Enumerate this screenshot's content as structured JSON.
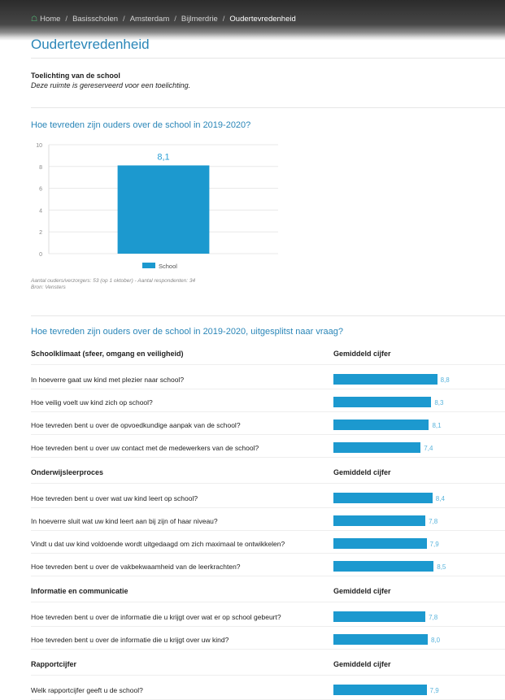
{
  "breadcrumb": {
    "home": "Home",
    "items": [
      "Basisscholen",
      "Amsterdam",
      "Bijlmerdrie"
    ],
    "current": "Oudertevredenheid"
  },
  "page_title": "Oudertevredenheid",
  "intro": {
    "title": "Toelichting van de school",
    "text": "Deze ruimte is gereserveerd voor een toelichting."
  },
  "chart_section": {
    "title": "Hoe tevreden zijn ouders over de school in 2019-2020?",
    "note_line1": "Aantal ouders/verzorgers: 53 (op 1 oktober) - Aantal respondenten: 34",
    "note_line2": "Bron: Vensters"
  },
  "chart_data": {
    "type": "bar",
    "categories": [
      ""
    ],
    "series": [
      {
        "name": "School",
        "values": [
          8.1
        ]
      }
    ],
    "data_labels": [
      "8,1"
    ],
    "yticks": [
      "0",
      "2",
      "4",
      "6",
      "8",
      "10"
    ],
    "ylim": [
      0,
      10
    ],
    "grid": true,
    "legend": "bottom-center",
    "color": "#1c99cf"
  },
  "questions_section": {
    "title": "Hoe tevreden zijn ouders over de school in 2019-2020, uitgesplitst naar vraag?",
    "scale_max": 10,
    "bar_color": "#1c99cf",
    "groups": [
      {
        "header": "Schoolklimaat (sfeer, omgang en veiligheid)",
        "col_header": "Gemiddeld cijfer",
        "items": [
          {
            "question": "In hoeverre gaat uw kind met plezier naar school?",
            "value": 8.8,
            "label": "8,8"
          },
          {
            "question": "Hoe veilig voelt uw kind zich op school?",
            "value": 8.3,
            "label": "8,3"
          },
          {
            "question": "Hoe tevreden bent u over de opvoedkundige aanpak van de school?",
            "value": 8.1,
            "label": "8,1"
          },
          {
            "question": "Hoe tevreden bent u over uw contact met de medewerkers van de school?",
            "value": 7.4,
            "label": "7,4"
          }
        ]
      },
      {
        "header": "Onderwijsleerproces",
        "col_header": "Gemiddeld cijfer",
        "items": [
          {
            "question": "Hoe tevreden bent u over wat uw kind leert op school?",
            "value": 8.4,
            "label": "8,4"
          },
          {
            "question": "In hoeverre sluit wat uw kind leert aan bij zijn of haar niveau?",
            "value": 7.8,
            "label": "7,8"
          },
          {
            "question": "Vindt u dat uw kind voldoende wordt uitgedaagd om zich maximaal te ontwikkelen?",
            "value": 7.9,
            "label": "7,9"
          },
          {
            "question": "Hoe tevreden bent u over de vakbekwaamheid van de leerkrachten?",
            "value": 8.5,
            "label": "8,5"
          }
        ]
      },
      {
        "header": "Informatie en communicatie",
        "col_header": "Gemiddeld cijfer",
        "items": [
          {
            "question": "Hoe tevreden bent u over de informatie die u krijgt over wat er op school gebeurt?",
            "value": 7.8,
            "label": "7,8"
          },
          {
            "question": "Hoe tevreden bent u over de informatie die u krijgt over uw kind?",
            "value": 8.0,
            "label": "8,0"
          }
        ]
      },
      {
        "header": "Rapportcijfer",
        "col_header": "Gemiddeld cijfer",
        "items": [
          {
            "question": "Welk rapportcijfer geeft u de school?",
            "value": 7.9,
            "label": "7,9"
          }
        ]
      }
    ]
  }
}
